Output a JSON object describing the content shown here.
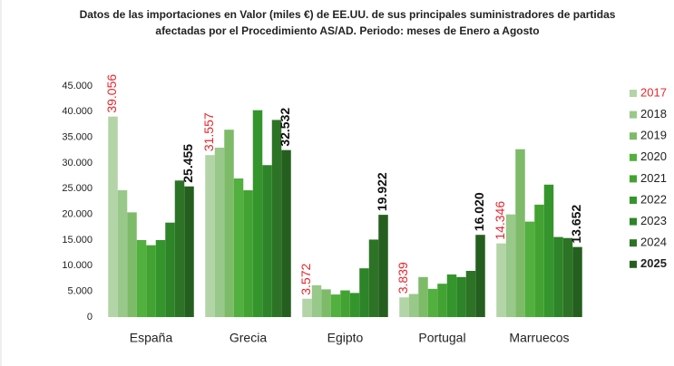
{
  "chart_data": {
    "type": "bar",
    "title": [
      "Datos de las importaciones  en Valor (miles €) de EE.UU. de sus principales suministradores de partidas",
      "afectadas por el Procedimiento AS/AD. Periodo: meses de Enero a Agosto"
    ],
    "categories": [
      "España",
      "Grecia",
      "Egipto",
      "Portugal",
      "Marruecos"
    ],
    "series": [
      {
        "name": "2017",
        "color": "#b3d4a6",
        "values": [
          39056,
          31557,
          3572,
          3839,
          14346
        ],
        "value_labels": [
          "39.056",
          "31.557",
          "3.572",
          "3.839",
          "14.346"
        ],
        "label_color": "#e8262b"
      },
      {
        "name": "2018",
        "color": "#98c88a",
        "values": [
          24700,
          33000,
          6200,
          4500,
          20000
        ]
      },
      {
        "name": "2019",
        "color": "#7dbb69",
        "values": [
          20400,
          36500,
          5400,
          7800,
          32700
        ]
      },
      {
        "name": "2020",
        "color": "#52b03f",
        "values": [
          15000,
          27000,
          4400,
          5500,
          18600
        ]
      },
      {
        "name": "2021",
        "color": "#43a332",
        "values": [
          14000,
          24700,
          5200,
          6500,
          21900
        ]
      },
      {
        "name": "2022",
        "color": "#35952d",
        "values": [
          15000,
          40300,
          4700,
          8300,
          25800
        ]
      },
      {
        "name": "2023",
        "color": "#2e8428",
        "values": [
          18400,
          29600,
          9500,
          7800,
          15600
        ]
      },
      {
        "name": "2024",
        "color": "#2d7326",
        "values": [
          26600,
          38400,
          15100,
          9000,
          15400
        ]
      },
      {
        "name": "2025",
        "color": "#255f1f",
        "values": [
          25455,
          32532,
          19922,
          16020,
          13652
        ],
        "value_labels": [
          "25.455",
          "32.532",
          "19.922",
          "16.020",
          "13.652"
        ],
        "label_color": "#111111"
      }
    ],
    "ylim": [
      0,
      45000
    ],
    "yticks": [
      0,
      {
        "value": 5000,
        "label": "5.000"
      },
      {
        "value": 10000,
        "label": "10.000"
      },
      {
        "value": 15000,
        "label": "15.000"
      },
      {
        "value": 20000,
        "label": "20.000"
      },
      {
        "value": 25000,
        "label": "25.000"
      },
      {
        "value": 30000,
        "label": "30.000"
      },
      {
        "value": 35000,
        "label": "35.000"
      },
      {
        "value": 40000,
        "label": "40.000"
      },
      {
        "value": 45000,
        "label": "45.000"
      }
    ],
    "grid": false,
    "legend": "right"
  }
}
